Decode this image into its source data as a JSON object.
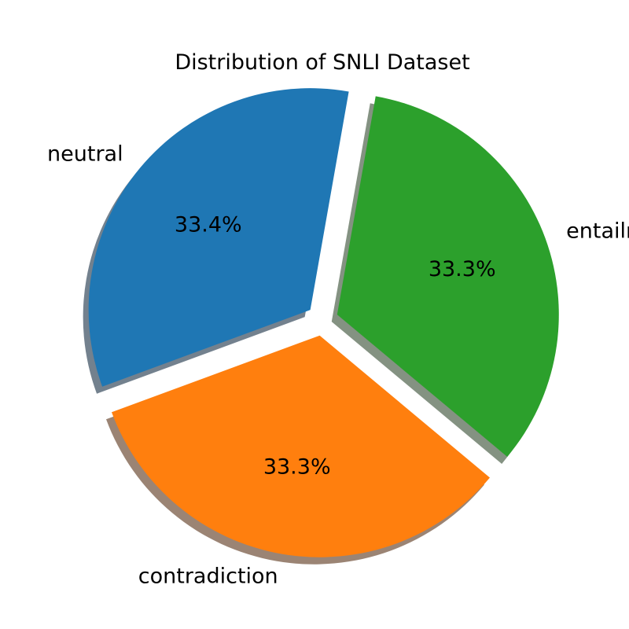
{
  "chart_data": {
    "type": "pie",
    "title": "Distribution of SNLI Dataset",
    "categories": [
      "neutral",
      "contradiction",
      "entailment"
    ],
    "values": [
      33.4,
      33.3,
      33.3
    ],
    "value_labels": [
      "33.4%",
      "33.3%",
      "33.3%"
    ],
    "colors": [
      "#1f77b4",
      "#ff7f0e",
      "#2ca02c"
    ],
    "start_angle_deg": 80,
    "exploded": true,
    "shadow": true,
    "legend": "none"
  }
}
